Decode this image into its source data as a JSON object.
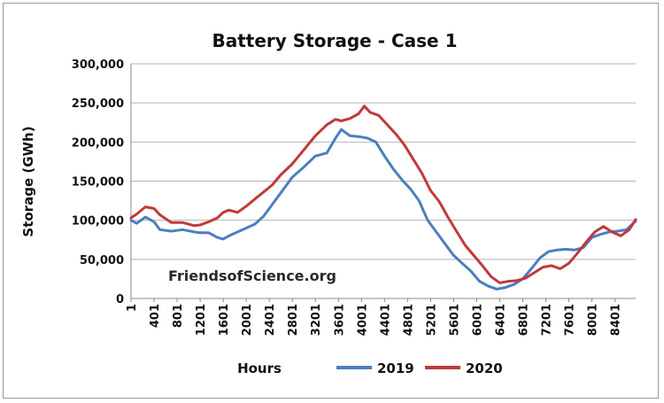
{
  "chart_data": {
    "type": "line",
    "title": "Battery Storage - Case 1",
    "xlabel": "Hours",
    "ylabel": "Storage (GWh)",
    "watermark": "FriendsofScience.org",
    "xlim": [
      1,
      8760
    ],
    "ylim": [
      0,
      300000
    ],
    "x_ticks": [
      1,
      401,
      801,
      1201,
      1601,
      2001,
      2401,
      2801,
      3201,
      3601,
      4001,
      4401,
      4801,
      5201,
      5601,
      6001,
      6401,
      6801,
      7201,
      7601,
      8001,
      8401
    ],
    "x_tick_labels": [
      "1",
      "401",
      "801",
      "1201",
      "1601",
      "2001",
      "2401",
      "2801",
      "3201",
      "3601",
      "4001",
      "4401",
      "4801",
      "5201",
      "5601",
      "6001",
      "6401",
      "6801",
      "7201",
      "7601",
      "8001",
      "8401"
    ],
    "y_ticks": [
      0,
      50000,
      100000,
      150000,
      200000,
      250000,
      300000
    ],
    "y_tick_labels": [
      "0",
      "50,000",
      "100,000",
      "150,000",
      "200,000",
      "250,000",
      "300,000"
    ],
    "grid": "horizontal",
    "legend_position": "bottom",
    "series": [
      {
        "name": "2019",
        "color": "#4a7fc0",
        "x": [
          1,
          100,
          250,
          400,
          500,
          700,
          900,
          1100,
          1200,
          1350,
          1500,
          1600,
          1700,
          1850,
          2000,
          2150,
          2300,
          2450,
          2600,
          2800,
          3000,
          3200,
          3400,
          3550,
          3650,
          3800,
          3950,
          4100,
          4250,
          4400,
          4550,
          4700,
          4850,
          5000,
          5150,
          5300,
          5450,
          5600,
          5750,
          5900,
          6050,
          6200,
          6350,
          6500,
          6650,
          6800,
          6950,
          7100,
          7250,
          7400,
          7550,
          7700,
          7850,
          8000,
          8150,
          8300,
          8450,
          8600,
          8760
        ],
        "values": [
          100000,
          96000,
          104000,
          98000,
          88000,
          86000,
          88000,
          85000,
          84000,
          84000,
          78000,
          76000,
          80000,
          85000,
          90000,
          95000,
          105000,
          120000,
          135000,
          155000,
          168000,
          182000,
          186000,
          205000,
          216000,
          208000,
          207000,
          205000,
          200000,
          182000,
          166000,
          152000,
          140000,
          125000,
          100000,
          85000,
          70000,
          55000,
          45000,
          35000,
          22000,
          16000,
          12000,
          14000,
          18000,
          25000,
          38000,
          52000,
          60000,
          62000,
          63000,
          62000,
          65000,
          78000,
          82000,
          85000,
          86000,
          88000,
          99000
        ]
      },
      {
        "name": "2020",
        "color": "#c0393b",
        "x": [
          1,
          100,
          250,
          400,
          500,
          700,
          900,
          1100,
          1200,
          1350,
          1500,
          1600,
          1700,
          1850,
          2000,
          2150,
          2300,
          2450,
          2600,
          2800,
          3000,
          3200,
          3400,
          3550,
          3650,
          3800,
          3950,
          4050,
          4150,
          4300,
          4450,
          4600,
          4750,
          4900,
          5050,
          5200,
          5350,
          5500,
          5650,
          5800,
          5950,
          6100,
          6250,
          6400,
          6550,
          6700,
          6850,
          7000,
          7150,
          7300,
          7450,
          7600,
          7750,
          7900,
          8050,
          8200,
          8350,
          8500,
          8650,
          8760
        ],
        "values": [
          103000,
          108000,
          117000,
          115000,
          107000,
          97000,
          97000,
          93000,
          94000,
          98000,
          103000,
          110000,
          113000,
          110000,
          118000,
          127000,
          136000,
          145000,
          158000,
          172000,
          190000,
          208000,
          222000,
          229000,
          227000,
          230000,
          236000,
          246000,
          238000,
          234000,
          222000,
          210000,
          196000,
          178000,
          160000,
          138000,
          124000,
          104000,
          86000,
          68000,
          55000,
          42000,
          28000,
          20000,
          22000,
          23000,
          26000,
          33000,
          40000,
          42000,
          38000,
          45000,
          58000,
          72000,
          85000,
          92000,
          85000,
          80000,
          88000,
          101000
        ]
      }
    ]
  }
}
